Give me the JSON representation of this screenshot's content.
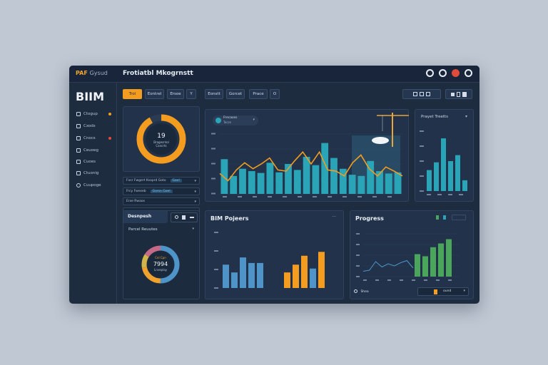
{
  "window": {
    "brand_small_a": "PAF",
    "brand_small_b": "Gysud",
    "title": "Frotiatbl Mkogrnstt",
    "logo": "BIIM"
  },
  "sidebar": {
    "items": [
      {
        "label": "Ctogup"
      },
      {
        "label": "Cxods"
      },
      {
        "label": "Cnocs"
      },
      {
        "label": "Ceuoeg"
      },
      {
        "label": "Cuoes"
      },
      {
        "label": "Ctuonig"
      },
      {
        "label": "Cuupoge"
      }
    ]
  },
  "toolbar": {
    "buttons": [
      "Trol",
      "Eontrel",
      "Ersoe",
      "Y",
      "Eonstt",
      "Gorcet",
      "Prace",
      "O"
    ]
  },
  "donut_top": {
    "center_value": "19",
    "center_line1": "Bragesntol",
    "center_line2": "Cancrts",
    "orange_fraction": 0.92
  },
  "list_rows": [
    {
      "label": "Fxsr Fwgert Ksoprd Goto",
      "value": "Gaxl"
    },
    {
      "label": "Frcy Fweseb",
      "value": "Gorsn Goel"
    },
    {
      "label": "Erxe Rwaos"
    },
    {}
  ],
  "main_chart": {
    "dropdown_title": "Frecaoss",
    "dropdown_sub": "Tocse"
  },
  "project_trends": {
    "title": "Prayet Treetts"
  },
  "bottom_left": {
    "tab_label": "Desnpesh",
    "subtitle": "Parcel Reuutes",
    "center_value": "7994",
    "center_top": "Cel Cpn",
    "center_bottom": "Lnveplay",
    "segments": [
      {
        "value": 0.5,
        "color": "#4e94c8"
      },
      {
        "value": 0.22,
        "color": "#f0a22c"
      },
      {
        "value": 0.12,
        "color": "#d1b44a"
      },
      {
        "value": 0.16,
        "color": "#c46a86"
      }
    ]
  },
  "bim_projects": {
    "title": "BIM Pojeers"
  },
  "progress": {
    "title": "Progress",
    "footer_label": "Shea",
    "footer_btn": "ound"
  },
  "chart_data": [
    {
      "type": "bar",
      "series": [
        {
          "values": [
            58,
            30,
            42,
            38,
            35,
            52,
            36,
            50,
            40,
            62,
            48,
            85,
            60,
            42,
            32,
            30,
            55,
            38,
            34,
            36
          ]
        },
        {
          "values": [
            34,
            22,
            40,
            52,
            42,
            50,
            60,
            40,
            38,
            55,
            70,
            50,
            70,
            40,
            38,
            30,
            52,
            65,
            42,
            30,
            45,
            38,
            30
          ]
        }
      ]
    },
    {
      "type": "bar",
      "values": [
        35,
        48,
        88,
        50,
        60,
        18
      ]
    },
    {
      "type": "bar",
      "series": [
        {
          "values": [
            42,
            28,
            55,
            45,
            45
          ]
        },
        {
          "values": [
            28,
            42,
            58,
            35,
            65
          ]
        }
      ]
    },
    {
      "type": "line",
      "series": [
        {
          "values": [
            10,
            12,
            28,
            18,
            24,
            20,
            26,
            30,
            16
          ]
        },
        {
          "values": [
            12,
            14,
            20,
            32,
            42,
            38,
            55,
            62,
            70
          ]
        }
      ]
    }
  ],
  "colors": {
    "accent": "#f39c1f",
    "teal": "#2aa5b8",
    "green": "#4aa65a",
    "blue": "#4e94c8",
    "bg": "#1e2c40"
  }
}
